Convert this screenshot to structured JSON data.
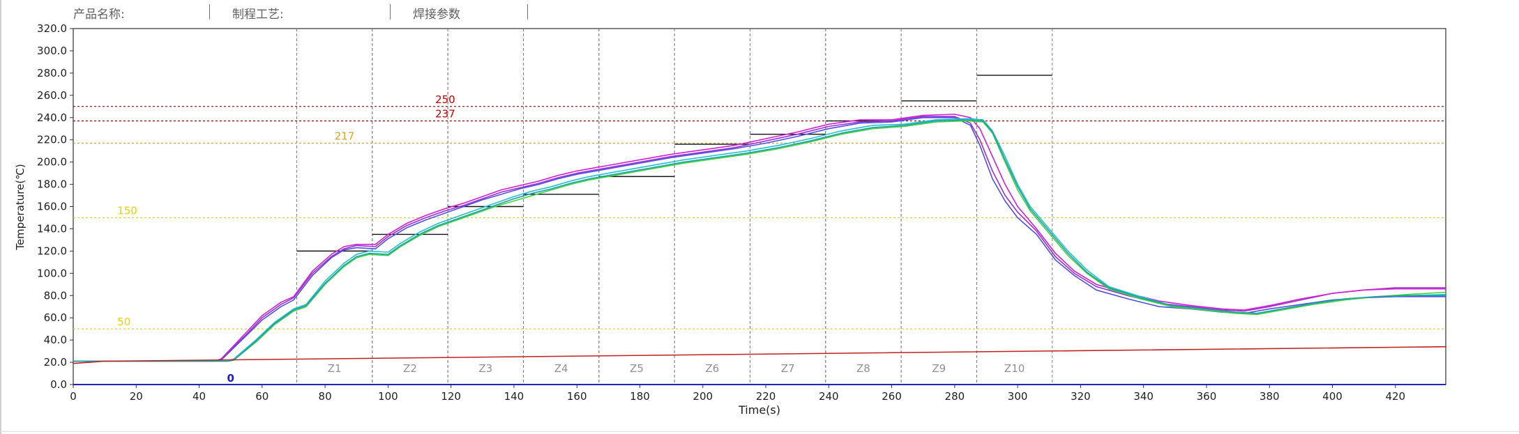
{
  "header": {
    "fields": [
      {
        "label": "产品名称:"
      },
      {
        "label": "制程工艺:"
      },
      {
        "label": "焊接参数"
      }
    ]
  },
  "chart_data": {
    "type": "line",
    "title": "",
    "xlabel": "Time(s)",
    "ylabel": "Temperature(℃)",
    "xlim": [
      0,
      436
    ],
    "ylim": [
      0,
      320
    ],
    "xticks": [
      0,
      20,
      40,
      60,
      80,
      100,
      120,
      140,
      160,
      180,
      200,
      220,
      240,
      260,
      280,
      300,
      320,
      340,
      360,
      380,
      400,
      420
    ],
    "yticks": [
      0,
      20,
      40,
      60,
      80,
      100,
      120,
      140,
      160,
      180,
      200,
      220,
      240,
      260,
      280,
      300,
      320
    ],
    "ytick_format": "one_decimal",
    "grid": false,
    "reference_lines": [
      {
        "value": 250,
        "label": "250",
        "color": "#c00000",
        "label_x": 115
      },
      {
        "value": 237,
        "label": "237",
        "color": "#c00000",
        "label_x": 115
      },
      {
        "value": 217,
        "label": "217",
        "color": "#e0a020",
        "label_x": 83
      },
      {
        "value": 150,
        "label": "150",
        "color": "#e8d000",
        "label_x": 14
      },
      {
        "value": 50,
        "label": "50",
        "color": "#e8d000",
        "label_x": 14
      }
    ],
    "zones": [
      {
        "name": "Z1",
        "start": 71,
        "end": 95,
        "setpoint": 120
      },
      {
        "name": "Z2",
        "start": 95,
        "end": 119,
        "setpoint": 135
      },
      {
        "name": "Z3",
        "start": 119,
        "end": 143,
        "setpoint": 160
      },
      {
        "name": "Z4",
        "start": 143,
        "end": 167,
        "setpoint": 171
      },
      {
        "name": "Z5",
        "start": 167,
        "end": 191,
        "setpoint": 187
      },
      {
        "name": "Z6",
        "start": 191,
        "end": 215,
        "setpoint": 216
      },
      {
        "name": "Z7",
        "start": 215,
        "end": 239,
        "setpoint": 225
      },
      {
        "name": "Z8",
        "start": 239,
        "end": 263,
        "setpoint": 237
      },
      {
        "name": "Z9",
        "start": 263,
        "end": 287,
        "setpoint": 255
      },
      {
        "name": "Z10",
        "start": 287,
        "end": 311,
        "setpoint": 278
      }
    ],
    "start_marker": {
      "x": 50,
      "label": "0"
    },
    "series": [
      {
        "color": "#9c30d0",
        "x": [
          0,
          45,
          47,
          55,
          60,
          66,
          70,
          76,
          82,
          86,
          90,
          96,
          100,
          106,
          112,
          118,
          124,
          130,
          136,
          142,
          148,
          154,
          160,
          166,
          174,
          182,
          190,
          200,
          210,
          220,
          230,
          240,
          250,
          260,
          270,
          280,
          285,
          288,
          292,
          296,
          300,
          306,
          312,
          318,
          325,
          335,
          345,
          355,
          365,
          372,
          380,
          390,
          400,
          410,
          420,
          436
        ],
        "y": [
          21,
          21,
          23,
          45,
          60,
          72,
          78,
          100,
          115,
          122,
          125,
          124,
          133,
          143,
          150,
          156,
          161,
          167,
          173,
          177,
          181,
          186,
          190,
          193,
          197,
          201,
          205,
          209,
          213,
          219,
          225,
          232,
          236,
          237,
          241,
          241,
          235,
          220,
          192,
          170,
          155,
          138,
          115,
          100,
          88,
          80,
          73,
          70,
          67,
          66,
          70,
          76,
          82,
          85,
          87,
          87
        ]
      },
      {
        "color": "#d020d0",
        "x": [
          0,
          45,
          47,
          55,
          60,
          66,
          70,
          76,
          82,
          86,
          90,
          96,
          100,
          106,
          112,
          118,
          124,
          130,
          136,
          142,
          148,
          154,
          160,
          166,
          174,
          182,
          190,
          200,
          210,
          220,
          230,
          240,
          250,
          260,
          270,
          280,
          285,
          288,
          292,
          296,
          300,
          306,
          312,
          318,
          325,
          335,
          345,
          355,
          365,
          372,
          380,
          390,
          400,
          410,
          420,
          436
        ],
        "y": [
          21,
          21,
          23,
          47,
          62,
          74,
          79,
          102,
          117,
          124,
          126,
          126,
          135,
          145,
          152,
          158,
          163,
          169,
          175,
          179,
          183,
          188,
          192,
          195,
          199,
          203,
          207,
          211,
          215,
          221,
          227,
          234,
          238,
          238,
          242,
          243,
          240,
          230,
          205,
          180,
          160,
          140,
          118,
          102,
          90,
          82,
          75,
          71,
          68,
          67,
          71,
          77,
          82,
          85,
          86,
          86
        ]
      },
      {
        "color": "#5050e0",
        "x": [
          0,
          45,
          47,
          55,
          60,
          66,
          70,
          76,
          82,
          86,
          90,
          96,
          100,
          106,
          112,
          118,
          124,
          130,
          136,
          142,
          148,
          154,
          160,
          166,
          174,
          182,
          190,
          200,
          210,
          220,
          230,
          240,
          250,
          260,
          270,
          280,
          285,
          288,
          292,
          296,
          300,
          306,
          312,
          318,
          325,
          335,
          345,
          355,
          365,
          372,
          380,
          390,
          400,
          410,
          420,
          436
        ],
        "y": [
          21,
          21,
          22,
          44,
          58,
          70,
          76,
          98,
          114,
          121,
          123,
          122,
          131,
          141,
          148,
          154,
          160,
          166,
          171,
          176,
          180,
          185,
          189,
          192,
          196,
          200,
          204,
          208,
          212,
          217,
          223,
          230,
          235,
          236,
          240,
          240,
          233,
          215,
          185,
          165,
          150,
          135,
          112,
          98,
          85,
          77,
          70,
          68,
          65,
          64,
          68,
          72,
          76,
          78,
          79,
          79
        ]
      },
      {
        "color": "#20c0d0",
        "x": [
          0,
          49,
          51,
          58,
          64,
          70,
          74,
          80,
          86,
          90,
          94,
          100,
          104,
          110,
          116,
          122,
          128,
          134,
          140,
          146,
          152,
          158,
          164,
          170,
          178,
          186,
          194,
          204,
          214,
          224,
          234,
          244,
          254,
          264,
          274,
          284,
          289,
          292,
          296,
          300,
          304,
          310,
          316,
          322,
          329,
          339,
          349,
          359,
          369,
          376,
          384,
          394,
          404,
          414,
          424,
          436
        ],
        "y": [
          21,
          21,
          23,
          40,
          56,
          68,
          72,
          93,
          109,
          117,
          120,
          119,
          127,
          137,
          145,
          151,
          157,
          163,
          169,
          174,
          178,
          183,
          187,
          190,
          194,
          198,
          202,
          206,
          210,
          215,
          221,
          228,
          233,
          234,
          238,
          239,
          238,
          228,
          205,
          180,
          160,
          140,
          120,
          103,
          88,
          79,
          71,
          68,
          65,
          64,
          68,
          73,
          77,
          79,
          80,
          81
        ]
      },
      {
        "color": "#40d040",
        "x": [
          0,
          49,
          51,
          58,
          64,
          70,
          74,
          80,
          86,
          90,
          94,
          100,
          104,
          110,
          116,
          122,
          128,
          134,
          140,
          146,
          152,
          158,
          164,
          170,
          178,
          186,
          194,
          204,
          214,
          224,
          234,
          244,
          254,
          264,
          274,
          284,
          289,
          292,
          296,
          300,
          304,
          310,
          316,
          322,
          329,
          339,
          349,
          359,
          369,
          376,
          384,
          394,
          404,
          414,
          424,
          436
        ],
        "y": [
          21,
          21,
          22,
          38,
          54,
          66,
          70,
          90,
          106,
          114,
          117,
          116,
          124,
          134,
          142,
          148,
          154,
          160,
          165,
          170,
          175,
          180,
          184,
          187,
          191,
          195,
          199,
          203,
          207,
          212,
          218,
          225,
          230,
          232,
          236,
          237,
          236,
          226,
          200,
          175,
          156,
          136,
          116,
          100,
          86,
          77,
          70,
          67,
          64,
          63,
          67,
          72,
          76,
          79,
          81,
          83
        ]
      },
      {
        "color": "#20a0a0",
        "x": [
          0,
          49,
          51,
          58,
          64,
          70,
          74,
          80,
          86,
          90,
          94,
          100,
          104,
          110,
          116,
          122,
          128,
          134,
          140,
          146,
          152,
          158,
          164,
          170,
          178,
          186,
          194,
          204,
          214,
          224,
          234,
          244,
          254,
          264,
          274,
          284,
          289,
          292,
          296,
          300,
          304,
          310,
          316,
          322,
          329,
          339,
          349,
          359,
          369,
          376,
          384,
          394,
          404,
          414,
          424,
          436
        ],
        "y": [
          21,
          21,
          22,
          39,
          55,
          67,
          71,
          91,
          107,
          115,
          118,
          117,
          125,
          135,
          143,
          149,
          155,
          161,
          167,
          172,
          176,
          181,
          185,
          188,
          192,
          196,
          200,
          204,
          208,
          213,
          219,
          226,
          231,
          233,
          237,
          238,
          237,
          227,
          202,
          178,
          158,
          138,
          118,
          101,
          87,
          78,
          71,
          68,
          65,
          64,
          68,
          73,
          77,
          79,
          80,
          80
        ]
      },
      {
        "color": "#c02020",
        "x": [
          0,
          10,
          436
        ],
        "y": [
          19,
          21,
          34
        ]
      }
    ]
  }
}
